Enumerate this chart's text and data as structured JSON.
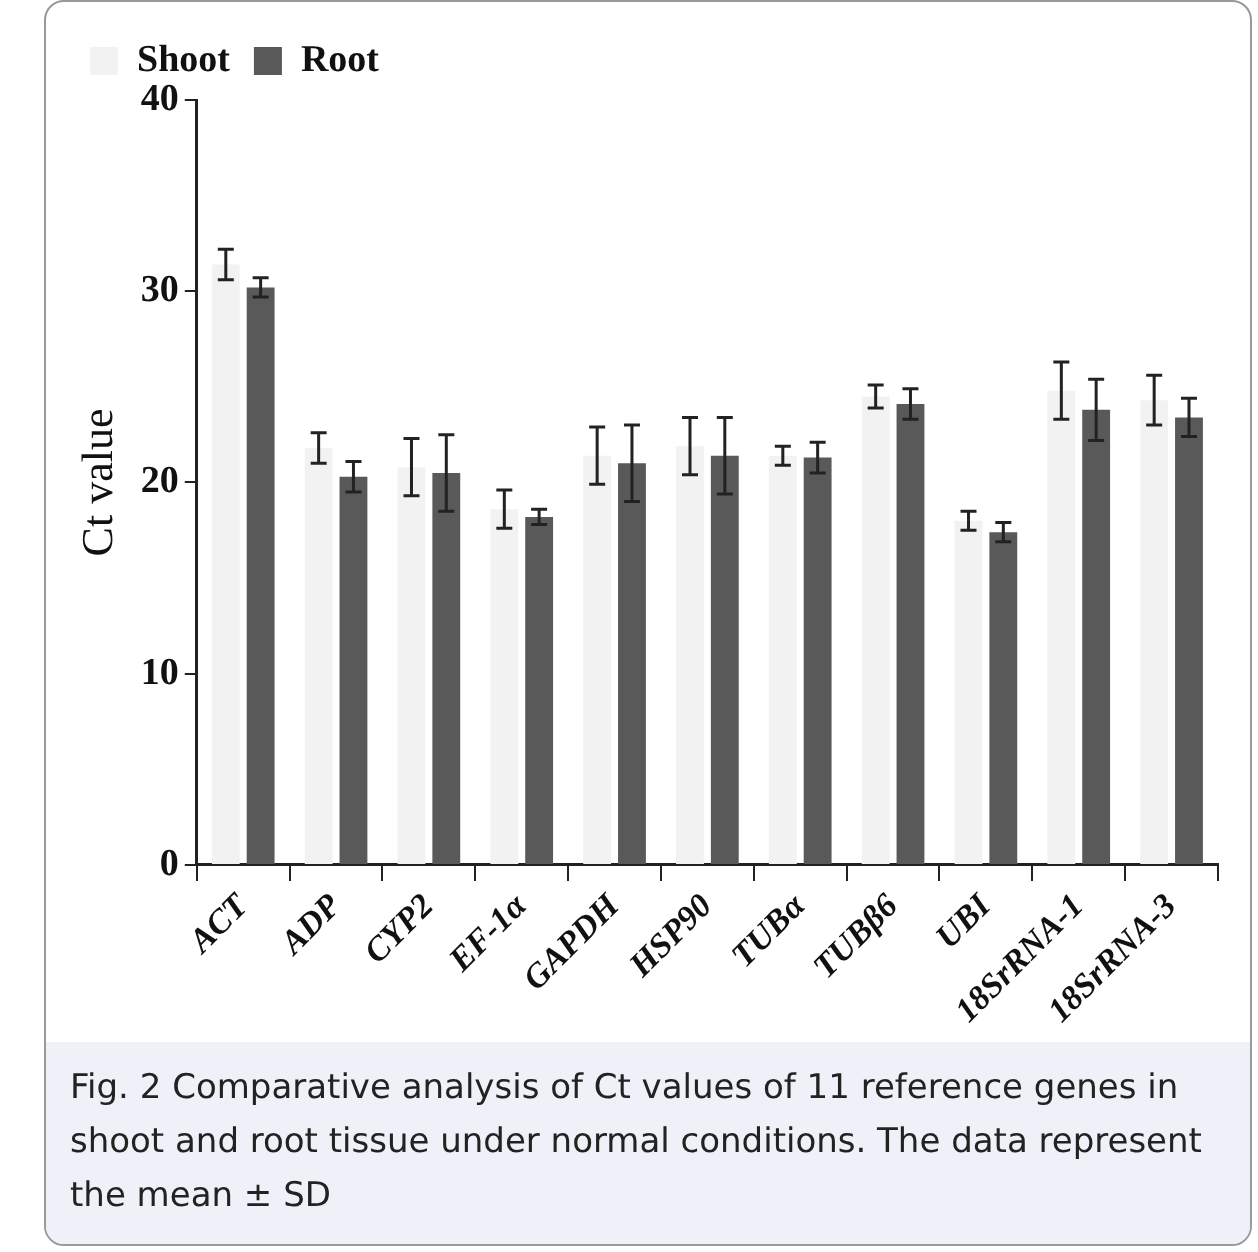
{
  "chart_data": {
    "type": "bar",
    "ylabel": "Ct value",
    "categories": [
      "ACT",
      "ADP",
      "CYP2",
      "EF-1α",
      "GAPDH",
      "HSP90",
      "TUBα",
      "TUBβ6",
      "UBI",
      "18SrRNA-1",
      "18SrRNA-3"
    ],
    "series": [
      {
        "name": "Shoot",
        "color": "#f2f2f2",
        "values": [
          31.4,
          21.8,
          20.8,
          18.6,
          21.4,
          21.9,
          21.4,
          24.5,
          18.0,
          24.8,
          24.3
        ],
        "errors": [
          0.8,
          0.8,
          1.5,
          1.0,
          1.5,
          1.5,
          0.5,
          0.6,
          0.5,
          1.5,
          1.3
        ]
      },
      {
        "name": "Root",
        "color": "#595959",
        "values": [
          30.2,
          20.3,
          20.5,
          18.2,
          21.0,
          21.4,
          21.3,
          24.1,
          17.4,
          23.8,
          23.4
        ],
        "errors": [
          0.5,
          0.8,
          2.0,
          0.4,
          2.0,
          2.0,
          0.8,
          0.8,
          0.5,
          1.6,
          1.0
        ]
      }
    ],
    "ylim": [
      0,
      40
    ],
    "yticks": [
      0,
      10,
      20,
      30,
      40
    ],
    "grid": false,
    "legend": "top left",
    "annotations": [
      "Fig. 2  Comparative analysis of Ct values of 11 reference genes in shoot and root tissue under normal conditions. The data represent the mean ± SD"
    ]
  }
}
